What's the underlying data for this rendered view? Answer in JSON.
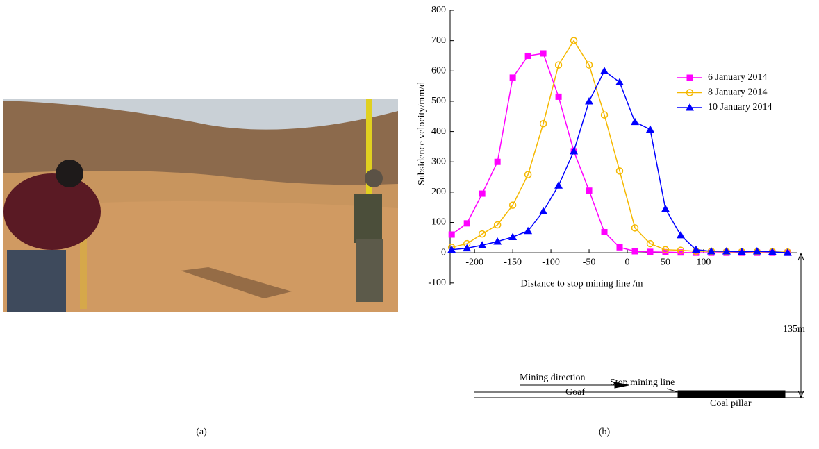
{
  "chart_data": {
    "type": "line",
    "xlabel": "Distance to stop mining line /m",
    "ylabel": "Subsidence velocity/mm/d",
    "x": [
      -230,
      -210,
      -190,
      -170,
      -150,
      -130,
      -110,
      -90,
      -70,
      -50,
      -30,
      -10,
      10,
      30,
      50,
      70,
      90,
      110,
      130,
      150,
      170,
      190,
      210
    ],
    "series": [
      {
        "name": "6 January 2014",
        "color": "#ff00ff",
        "marker": "square",
        "values": [
          60,
          97,
          195,
          300,
          578,
          650,
          658,
          515,
          335,
          205,
          68,
          18,
          5,
          3,
          2,
          1,
          0,
          0,
          0,
          0,
          0,
          0,
          0
        ]
      },
      {
        "name": "8 January 2014",
        "color": "#f5b800",
        "marker": "circle",
        "values": [
          18,
          30,
          62,
          92,
          157,
          258,
          426,
          620,
          700,
          620,
          455,
          270,
          82,
          30,
          10,
          8,
          5,
          5,
          3,
          3,
          3,
          3,
          2
        ]
      },
      {
        "name": "10 January 2014",
        "color": "#0000ff",
        "marker": "triangle",
        "values": [
          10,
          15,
          25,
          37,
          52,
          72,
          137,
          222,
          335,
          500,
          600,
          563,
          432,
          407,
          145,
          58,
          10,
          5,
          5,
          3,
          5,
          3,
          0
        ]
      }
    ],
    "xlim": [
      -232,
      222
    ],
    "ylim": [
      -105,
      800
    ],
    "xticks": [
      -200,
      -150,
      -100,
      -50,
      0,
      50,
      100
    ],
    "yticks": [
      -100,
      0,
      100,
      200,
      300,
      400,
      500,
      600,
      700,
      800
    ],
    "legend": "upper-right"
  },
  "diagram": {
    "depth": "135m",
    "stop_line": "Stop mining line",
    "direction": "Mining direction",
    "goaf": "Goaf",
    "coal_pillar": "Coal pillar"
  },
  "panels": {
    "a": "(a)",
    "b": "(b)"
  }
}
